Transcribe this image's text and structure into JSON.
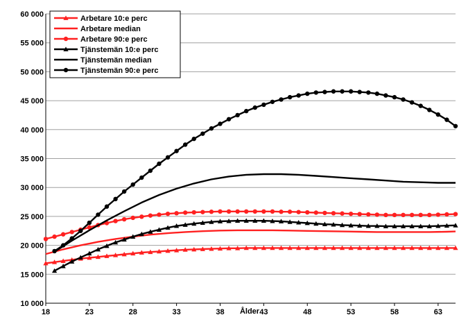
{
  "chart_data": {
    "type": "line",
    "title": "",
    "xlabel": "Ålder",
    "ylabel": "",
    "xlim": [
      18,
      65
    ],
    "ylim": [
      10000,
      60000
    ],
    "yticks": [
      10000,
      15000,
      20000,
      25000,
      30000,
      35000,
      40000,
      45000,
      50000,
      55000,
      60000
    ],
    "ytick_labels": [
      "10 000",
      "15 000",
      "20 000",
      "25 000",
      "30 000",
      "35 000",
      "40 000",
      "45 000",
      "50 000",
      "55 000",
      "60 000"
    ],
    "xticks": [
      18,
      23,
      28,
      33,
      38,
      43,
      48,
      53,
      58,
      63
    ],
    "xtick_labels": [
      "18",
      "23",
      "28",
      "33",
      "38",
      "43",
      "48",
      "53",
      "58",
      "63"
    ],
    "grid": "horizontal",
    "legend_position": "top-left",
    "series": [
      {
        "name": "Arbetare 10:e perc",
        "color": "#ff2020",
        "marker": "triangle",
        "x": [
          18,
          19,
          20,
          21,
          22,
          23,
          24,
          25,
          26,
          27,
          28,
          29,
          30,
          31,
          32,
          33,
          34,
          35,
          36,
          37,
          38,
          39,
          40,
          41,
          42,
          43,
          44,
          45,
          46,
          47,
          48,
          49,
          50,
          51,
          52,
          53,
          54,
          55,
          56,
          57,
          58,
          59,
          60,
          61,
          62,
          63,
          64,
          65
        ],
        "values": [
          16900,
          17100,
          17300,
          17500,
          17700,
          17850,
          18000,
          18150,
          18300,
          18450,
          18600,
          18750,
          18850,
          18950,
          19050,
          19150,
          19250,
          19300,
          19350,
          19400,
          19450,
          19500,
          19500,
          19550,
          19550,
          19550,
          19550,
          19550,
          19550,
          19550,
          19550,
          19550,
          19550,
          19550,
          19550,
          19550,
          19550,
          19550,
          19550,
          19550,
          19550,
          19550,
          19550,
          19550,
          19550,
          19550,
          19550,
          19550
        ]
      },
      {
        "name": "Arbetare median",
        "color": "#ff2020",
        "marker": "none",
        "x": [
          18,
          20,
          22,
          24,
          26,
          28,
          30,
          32,
          34,
          36,
          38,
          40,
          42,
          44,
          46,
          48,
          50,
          52,
          54,
          56,
          58,
          60,
          62,
          64,
          65
        ],
        "values": [
          18500,
          19300,
          20000,
          20600,
          21100,
          21500,
          21850,
          22100,
          22300,
          22450,
          22550,
          22600,
          22600,
          22600,
          22550,
          22500,
          22450,
          22400,
          22350,
          22300,
          22300,
          22300,
          22300,
          22350,
          22400
        ]
      },
      {
        "name": "Arbetare 90:e perc",
        "color": "#ff2020",
        "marker": "circle",
        "x": [
          18,
          19,
          20,
          21,
          22,
          23,
          24,
          25,
          26,
          27,
          28,
          29,
          30,
          31,
          32,
          33,
          34,
          35,
          36,
          37,
          38,
          39,
          40,
          41,
          42,
          43,
          44,
          45,
          46,
          47,
          48,
          49,
          50,
          51,
          52,
          53,
          54,
          55,
          56,
          57,
          58,
          59,
          60,
          61,
          62,
          63,
          64,
          65
        ],
        "values": [
          21100,
          21500,
          21900,
          22300,
          22700,
          23100,
          23500,
          23850,
          24200,
          24500,
          24750,
          24950,
          25150,
          25300,
          25450,
          25550,
          25650,
          25700,
          25750,
          25800,
          25850,
          25850,
          25850,
          25850,
          25850,
          25850,
          25850,
          25800,
          25800,
          25750,
          25700,
          25650,
          25600,
          25550,
          25500,
          25450,
          25400,
          25350,
          25300,
          25250,
          25250,
          25250,
          25250,
          25250,
          25250,
          25300,
          25350,
          25400
        ]
      },
      {
        "name": "Tjänstemän 10:e perc",
        "color": "#000000",
        "marker": "triangle",
        "x": [
          19,
          20,
          21,
          22,
          23,
          24,
          25,
          26,
          27,
          28,
          29,
          30,
          31,
          32,
          33,
          34,
          35,
          36,
          37,
          38,
          39,
          40,
          41,
          42,
          43,
          44,
          45,
          46,
          47,
          48,
          49,
          50,
          51,
          52,
          53,
          54,
          55,
          56,
          57,
          58,
          59,
          60,
          61,
          62,
          63,
          64,
          65
        ],
        "values": [
          15600,
          16400,
          17200,
          17900,
          18600,
          19300,
          19900,
          20500,
          21000,
          21500,
          21950,
          22350,
          22700,
          23050,
          23350,
          23550,
          23750,
          23900,
          24050,
          24150,
          24200,
          24250,
          24250,
          24250,
          24250,
          24200,
          24150,
          24050,
          23950,
          23850,
          23750,
          23650,
          23600,
          23500,
          23450,
          23400,
          23350,
          23350,
          23300,
          23300,
          23300,
          23300,
          23300,
          23300,
          23350,
          23400,
          23450
        ]
      },
      {
        "name": "Tjänstemän median",
        "color": "#000000",
        "marker": "none",
        "x": [
          19,
          21,
          23,
          25,
          27,
          29,
          31,
          33,
          35,
          37,
          39,
          41,
          43,
          45,
          47,
          49,
          51,
          53,
          55,
          57,
          59,
          61,
          63,
          65
        ],
        "values": [
          18900,
          20800,
          22600,
          24300,
          25900,
          27400,
          28700,
          29800,
          30700,
          31400,
          31900,
          32200,
          32300,
          32300,
          32200,
          32000,
          31800,
          31600,
          31400,
          31200,
          31000,
          30900,
          30800,
          30800
        ]
      },
      {
        "name": "Tjänstemän 90:e perc",
        "color": "#000000",
        "marker": "circle",
        "x": [
          19,
          20,
          21,
          22,
          23,
          24,
          25,
          26,
          27,
          28,
          29,
          30,
          31,
          32,
          33,
          34,
          35,
          36,
          37,
          38,
          39,
          40,
          41,
          42,
          43,
          44,
          45,
          46,
          47,
          48,
          49,
          50,
          51,
          52,
          53,
          54,
          55,
          56,
          57,
          58,
          59,
          60,
          61,
          62,
          63,
          64,
          65
        ],
        "values": [
          19000,
          20000,
          21200,
          22500,
          23900,
          25300,
          26700,
          28000,
          29300,
          30500,
          31700,
          32900,
          34100,
          35200,
          36300,
          37400,
          38400,
          39300,
          40200,
          41000,
          41800,
          42500,
          43200,
          43800,
          44300,
          44800,
          45200,
          45600,
          45900,
          46200,
          46400,
          46500,
          46600,
          46600,
          46600,
          46500,
          46400,
          46200,
          45900,
          45600,
          45200,
          44700,
          44100,
          43400,
          42600,
          41700,
          40600
        ]
      }
    ]
  }
}
